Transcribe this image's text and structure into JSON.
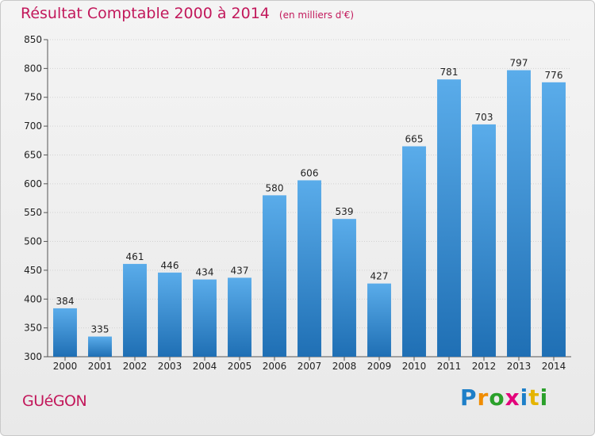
{
  "title": "Résultat Comptable 2000 à 2014",
  "unit": "(en milliers d'€)",
  "place": "GUéGON",
  "brand": {
    "letters": [
      {
        "ch": "P",
        "color": "#1e7fc8"
      },
      {
        "ch": "r",
        "color": "#f08c00"
      },
      {
        "ch": "o",
        "color": "#2aa02a"
      },
      {
        "ch": "x",
        "color": "#e3007a"
      },
      {
        "ch": "i",
        "color": "#1e7fc8"
      },
      {
        "ch": "t",
        "color": "#e5b400"
      },
      {
        "ch": "i",
        "color": "#2aa02a"
      }
    ]
  },
  "colors": {
    "bar_top": "#5aacea",
    "bar_bottom": "#1f6fb4",
    "title": "#c2185b"
  },
  "chart_data": {
    "type": "bar",
    "categories": [
      "2000",
      "2001",
      "2002",
      "2003",
      "2004",
      "2005",
      "2006",
      "2007",
      "2008",
      "2009",
      "2010",
      "2011",
      "2012",
      "2013",
      "2014"
    ],
    "values": [
      384,
      335,
      461,
      446,
      434,
      437,
      580,
      606,
      539,
      427,
      665,
      781,
      703,
      797,
      776
    ],
    "yticks": [
      300,
      350,
      400,
      450,
      500,
      550,
      600,
      650,
      700,
      750,
      800,
      850
    ],
    "ylim": [
      300,
      850
    ],
    "grid": true
  }
}
